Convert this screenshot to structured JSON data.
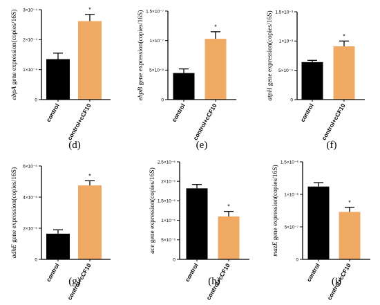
{
  "chart_data": [
    {
      "type": "bar",
      "panel": "(d)",
      "ylabel_gene": "ebpA",
      "ylabel_suffix": " gene expression(copies/16S)",
      "ylim": [
        0,
        0.0003
      ],
      "yticks": [
        {
          "value": 0,
          "label": "0"
        },
        {
          "value": 0.0001,
          "label": "1×10⁻⁴"
        },
        {
          "value": 0.0002,
          "label": "2×10⁻⁴"
        },
        {
          "value": 0.0003,
          "label": "3×10⁻⁴"
        }
      ],
      "categories": [
        "control",
        "control+cCF10"
      ],
      "values": [
        0.000135,
        0.000262
      ],
      "errors": [
        2e-05,
        2.2e-05
      ],
      "significance": [
        "",
        "*"
      ],
      "colors": [
        "#000000",
        "#F0AA63"
      ]
    },
    {
      "type": "bar",
      "panel": "(e)",
      "ylabel_gene": "ebpB",
      "ylabel_suffix": " gene expression(copies/16S)",
      "ylim": [
        0,
        1.5e-07
      ],
      "yticks": [
        {
          "value": 0,
          "label": "0"
        },
        {
          "value": 5e-08,
          "label": "5×10⁻⁸"
        },
        {
          "value": 1e-07,
          "label": "1×10⁻⁷"
        },
        {
          "value": 1.5e-07,
          "label": "1.5×10⁻⁷"
        }
      ],
      "categories": [
        "control",
        "control+cCF10"
      ],
      "values": [
        4.5e-08,
        1.03e-07
      ],
      "errors": [
        7e-09,
        1.2e-08
      ],
      "significance": [
        "",
        "*"
      ],
      "colors": [
        "#000000",
        "#F0AA63"
      ]
    },
    {
      "type": "bar",
      "panel": "(f)",
      "ylabel_gene": "atpH",
      "ylabel_suffix": " gene expression(copies/16S)",
      "ylim": [
        0,
        0.0015
      ],
      "yticks": [
        {
          "value": 0,
          "label": "0"
        },
        {
          "value": 0.0005,
          "label": "5×10⁻⁴"
        },
        {
          "value": 0.001,
          "label": "1×10⁻³"
        },
        {
          "value": 0.0015,
          "label": "1.5×10⁻³"
        }
      ],
      "categories": [
        "control",
        "control+cCF10"
      ],
      "values": [
        0.00064,
        0.00091
      ],
      "errors": [
        3e-05,
        9e-05
      ],
      "significance": [
        "",
        "*"
      ],
      "colors": [
        "#000000",
        "#F0AA63"
      ]
    },
    {
      "type": "bar",
      "panel": "(g)",
      "ylabel_gene": "adhE",
      "ylabel_suffix": " gene expression(copies/16S)",
      "ylim": [
        0,
        6e-05
      ],
      "yticks": [
        {
          "value": 0,
          "label": "0"
        },
        {
          "value": 2e-05,
          "label": "2×10⁻⁵"
        },
        {
          "value": 4e-05,
          "label": "4×10⁻⁵"
        },
        {
          "value": 6e-05,
          "label": "6×10⁻⁵"
        }
      ],
      "categories": [
        "control",
        "control+cCF10"
      ],
      "values": [
        1.65e-05,
        4.75e-05
      ],
      "errors": [
        2.5e-06,
        3e-06
      ],
      "significance": [
        "",
        "*"
      ],
      "colors": [
        "#000000",
        "#F0AA63"
      ]
    },
    {
      "type": "bar",
      "panel": "(h)",
      "ylabel_gene": "ace",
      "ylabel_suffix": " gene expression(copies/16S)",
      "ylim": [
        0,
        2.5e-05
      ],
      "yticks": [
        {
          "value": 0,
          "label": "0"
        },
        {
          "value": 5e-06,
          "label": "5×10⁻⁶"
        },
        {
          "value": 1e-05,
          "label": "1×10⁻⁵"
        },
        {
          "value": 1.5e-05,
          "label": "1.5×10⁻⁵"
        },
        {
          "value": 2e-05,
          "label": "2×10⁻⁵"
        },
        {
          "value": 2.5e-05,
          "label": "2.5×10⁻⁵"
        }
      ],
      "categories": [
        "control",
        "control+cCF10"
      ],
      "values": [
        1.82e-05,
        1.1e-05
      ],
      "errors": [
        1e-06,
        1.3e-06
      ],
      "significance": [
        "",
        "*"
      ],
      "colors": [
        "#000000",
        "#F0AA63"
      ]
    },
    {
      "type": "bar",
      "panel": "(i)",
      "ylabel_gene": "mazE",
      "ylabel_suffix": " gene expression(copies/16S)",
      "ylim": [
        0,
        1.5e-06
      ],
      "yticks": [
        {
          "value": 0,
          "label": "0"
        },
        {
          "value": 5e-07,
          "label": "5×10⁻⁷"
        },
        {
          "value": 1e-06,
          "label": "1×10⁻⁶"
        },
        {
          "value": 1.5e-06,
          "label": "1.5×10⁻⁶"
        }
      ],
      "categories": [
        "control",
        "control+cCF10"
      ],
      "values": [
        1.12e-06,
        7.3e-07
      ],
      "errors": [
        6e-08,
        7e-08
      ],
      "significance": [
        "",
        "*"
      ],
      "colors": [
        "#000000",
        "#F0AA63"
      ]
    }
  ]
}
